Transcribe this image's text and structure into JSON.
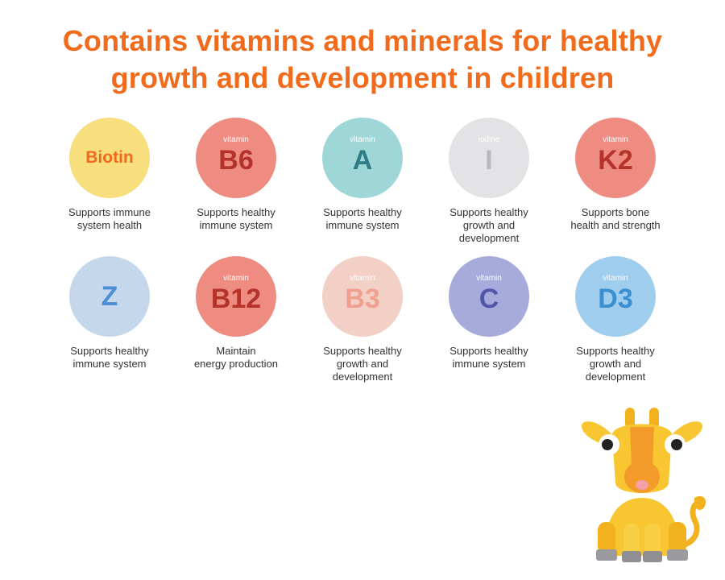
{
  "headline": {
    "line1": "Contains vitamins and minerals for healthy",
    "line2": "growth and development in children"
  },
  "nutrients": [
    {
      "small": "",
      "big": "Biotin",
      "desc1": "Supports immune",
      "desc2": "system health",
      "desc3": "",
      "bg": "#f6df7c",
      "fg": "#f06b1c"
    },
    {
      "small": "vitamin",
      "big": "B6",
      "desc1": "Supports healthy",
      "desc2": "immune system",
      "desc3": "",
      "bg": "#ef8c82",
      "fg": "#b3322a"
    },
    {
      "small": "vitamin",
      "big": "A",
      "desc1": "Supports healthy",
      "desc2": "immune system",
      "desc3": "",
      "bg": "#9fd6d8",
      "fg": "#2d7c86"
    },
    {
      "small": "iodine",
      "big": "I",
      "desc1": "Supports healthy",
      "desc2": "growth and",
      "desc3": "development",
      "bg": "#e3e3e6",
      "fg": "#b9b9bd"
    },
    {
      "small": "vitamin",
      "big": "K2",
      "desc1": "Supports  bone",
      "desc2": "health and strength",
      "desc3": "",
      "bg": "#ef8c82",
      "fg": "#b3322a"
    },
    {
      "small": "",
      "big": "Z",
      "desc1": "Supports healthy",
      "desc2": "immune system",
      "desc3": "",
      "bg": "#c5d7ea",
      "fg": "#4c8fd4"
    },
    {
      "small": "vitamin",
      "big": "B12",
      "desc1": "Maintain",
      "desc2": "energy production",
      "desc3": "",
      "bg": "#ef8c82",
      "fg": "#b3322a"
    },
    {
      "small": "vitamin",
      "big": "B3",
      "desc1": "Supports healthy",
      "desc2": "growth and",
      "desc3": "development",
      "bg": "#f3d0c6",
      "fg": "#f0a08e"
    },
    {
      "small": "vitamin",
      "big": "C",
      "desc1": "Supports healthy",
      "desc2": "immune system",
      "desc3": "",
      "bg": "#a6abdc",
      "fg": "#5157a8"
    },
    {
      "small": "vitamin",
      "big": "D3",
      "desc1": "Supports healthy",
      "desc2": "growth and",
      "desc3": "development",
      "bg": "#9ecdee",
      "fg": "#3a8fd0"
    }
  ]
}
